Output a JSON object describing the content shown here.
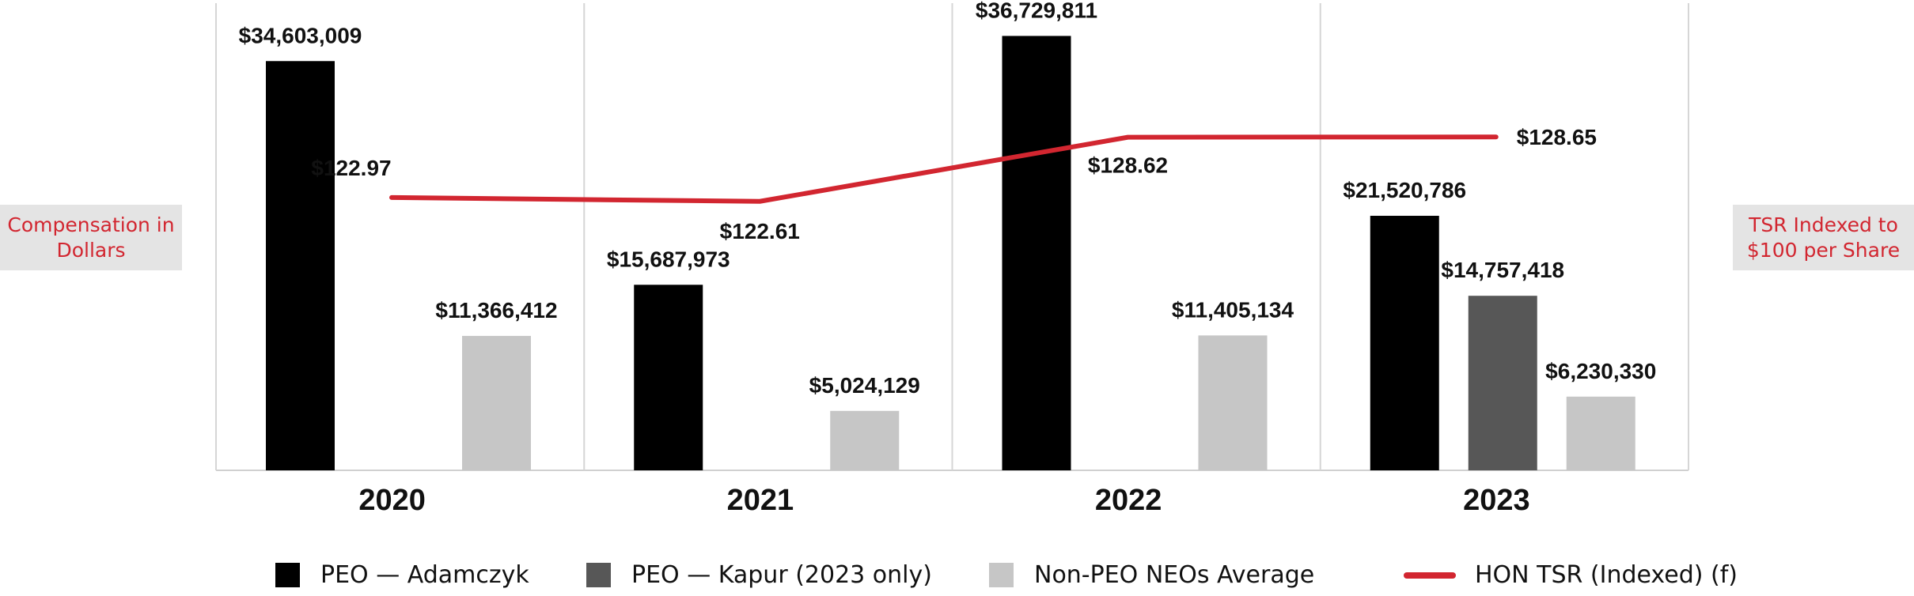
{
  "chart_data": {
    "type": "bar",
    "categories": [
      "2020",
      "2021",
      "2022",
      "2023"
    ],
    "left_axis_label": "Compensation in Dollars",
    "right_axis_label": "TSR Indexed to $100 per Share",
    "ylim": [
      0,
      39500000
    ],
    "y2lim": [
      100,
      140
    ],
    "series": [
      {
        "name": "PEO — Adamczyk",
        "color": "#000000",
        "values": [
          34603009,
          15687973,
          36729811,
          21520786
        ],
        "labels": [
          "$34,603,009",
          "$15,687,973",
          "$36,729,811",
          "$21,520,786"
        ]
      },
      {
        "name": "PEO — Kapur (2023 only)",
        "color": "#575757",
        "values": [
          null,
          null,
          null,
          14757418
        ],
        "labels": [
          "",
          "",
          "",
          "$14,757,418"
        ]
      },
      {
        "name": "Non-PEO NEOs Average",
        "color": "#c6c6c6",
        "values": [
          11366412,
          5024129,
          11405134,
          6230330
        ],
        "labels": [
          "$11,366,412",
          "$5,024,129",
          "$11,405,134",
          "$6,230,330"
        ]
      }
    ],
    "line_series": {
      "name": "HON TSR (Indexed) (f)",
      "color": "#d22630",
      "values": [
        122.97,
        122.61,
        128.62,
        128.65
      ],
      "labels": [
        "$122.97",
        "$122.61",
        "$128.62",
        "$128.65"
      ]
    },
    "legend_position": "bottom"
  }
}
